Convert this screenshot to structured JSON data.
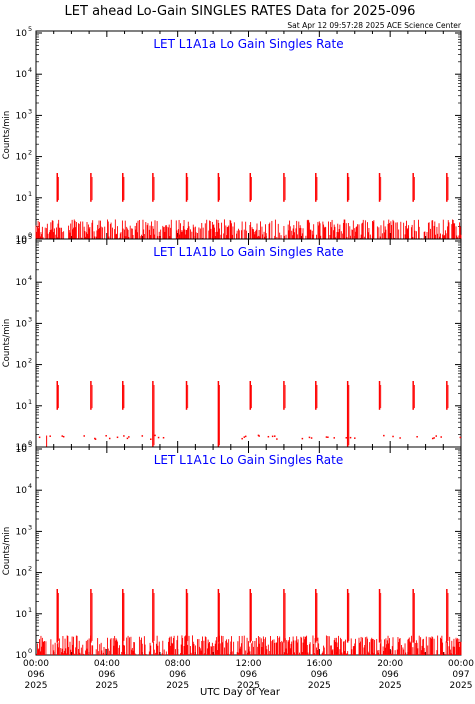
{
  "title": "LET ahead Lo-Gain SINGLES RATES Data for 2025-096",
  "timestamp": "Sat Apr 12 09:57:28 2025 ACE Science Center",
  "xlabel": "UTC Day of Year",
  "ylabel": "Counts/min",
  "colors": {
    "data": "#ff0000",
    "panel_title": "#0000ff",
    "axes": "#000000"
  },
  "x_ticks": [
    {
      "time": "00:00",
      "day": "096",
      "year": "2025"
    },
    {
      "time": "04:00",
      "day": "096",
      "year": "2025"
    },
    {
      "time": "08:00",
      "day": "096",
      "year": "2025"
    },
    {
      "time": "12:00",
      "day": "096",
      "year": "2025"
    },
    {
      "time": "16:00",
      "day": "096",
      "year": "2025"
    },
    {
      "time": "20:00",
      "day": "096",
      "year": "2025"
    },
    {
      "time": "00:00",
      "day": "097",
      "year": "2025"
    }
  ],
  "y_ticks": [
    {
      "base": "10",
      "exp": "0"
    },
    {
      "base": "10",
      "exp": "1"
    },
    {
      "base": "10",
      "exp": "2"
    },
    {
      "base": "10",
      "exp": "3"
    },
    {
      "base": "10",
      "exp": "4"
    },
    {
      "base": "10",
      "exp": "5"
    }
  ],
  "chart_data": [
    {
      "type": "line",
      "title": "LET L1A1a Lo Gain Singles Rate",
      "xlabel": "",
      "ylabel": "Counts/min",
      "xlim_hours": [
        0,
        24
      ],
      "ylim": [
        1,
        100000
      ],
      "y_scale": "log",
      "baseline_mode": "noisy",
      "spike_hours": [
        1.2,
        3.1,
        4.9,
        6.6,
        8.5,
        10.3,
        12.1,
        14.0,
        15.8,
        17.6,
        19.4,
        21.3,
        23.2
      ],
      "spike_peak": 40,
      "spike_floor": 8,
      "deep_spike_hours": [],
      "baseline_max": 3
    },
    {
      "type": "line",
      "title": "LET L1A1b Lo Gain Singles Rate",
      "xlabel": "",
      "ylabel": "Counts/min",
      "xlim_hours": [
        0,
        24
      ],
      "ylim": [
        1,
        100000
      ],
      "y_scale": "log",
      "baseline_mode": "sparse",
      "spike_hours": [
        1.2,
        3.1,
        4.9,
        6.6,
        8.5,
        10.3,
        12.1,
        14.0,
        15.8,
        17.6,
        19.4,
        21.3,
        23.2
      ],
      "spike_peak": 40,
      "spike_floor": 8,
      "deep_spike_hours": [
        6.6,
        10.3,
        17.6
      ],
      "baseline_max": 2
    },
    {
      "type": "line",
      "title": "LET L1A1c Lo Gain Singles Rate",
      "xlabel": "",
      "ylabel": "Counts/min",
      "xlim_hours": [
        0,
        24
      ],
      "ylim": [
        1,
        100000
      ],
      "y_scale": "log",
      "baseline_mode": "noisy",
      "spike_hours": [
        1.2,
        3.1,
        4.9,
        6.6,
        8.5,
        10.3,
        12.1,
        14.0,
        15.8,
        17.6,
        19.4,
        21.3,
        23.2
      ],
      "spike_peak": 40,
      "spike_floor": 2,
      "deep_spike_hours": [],
      "baseline_max": 3
    }
  ]
}
